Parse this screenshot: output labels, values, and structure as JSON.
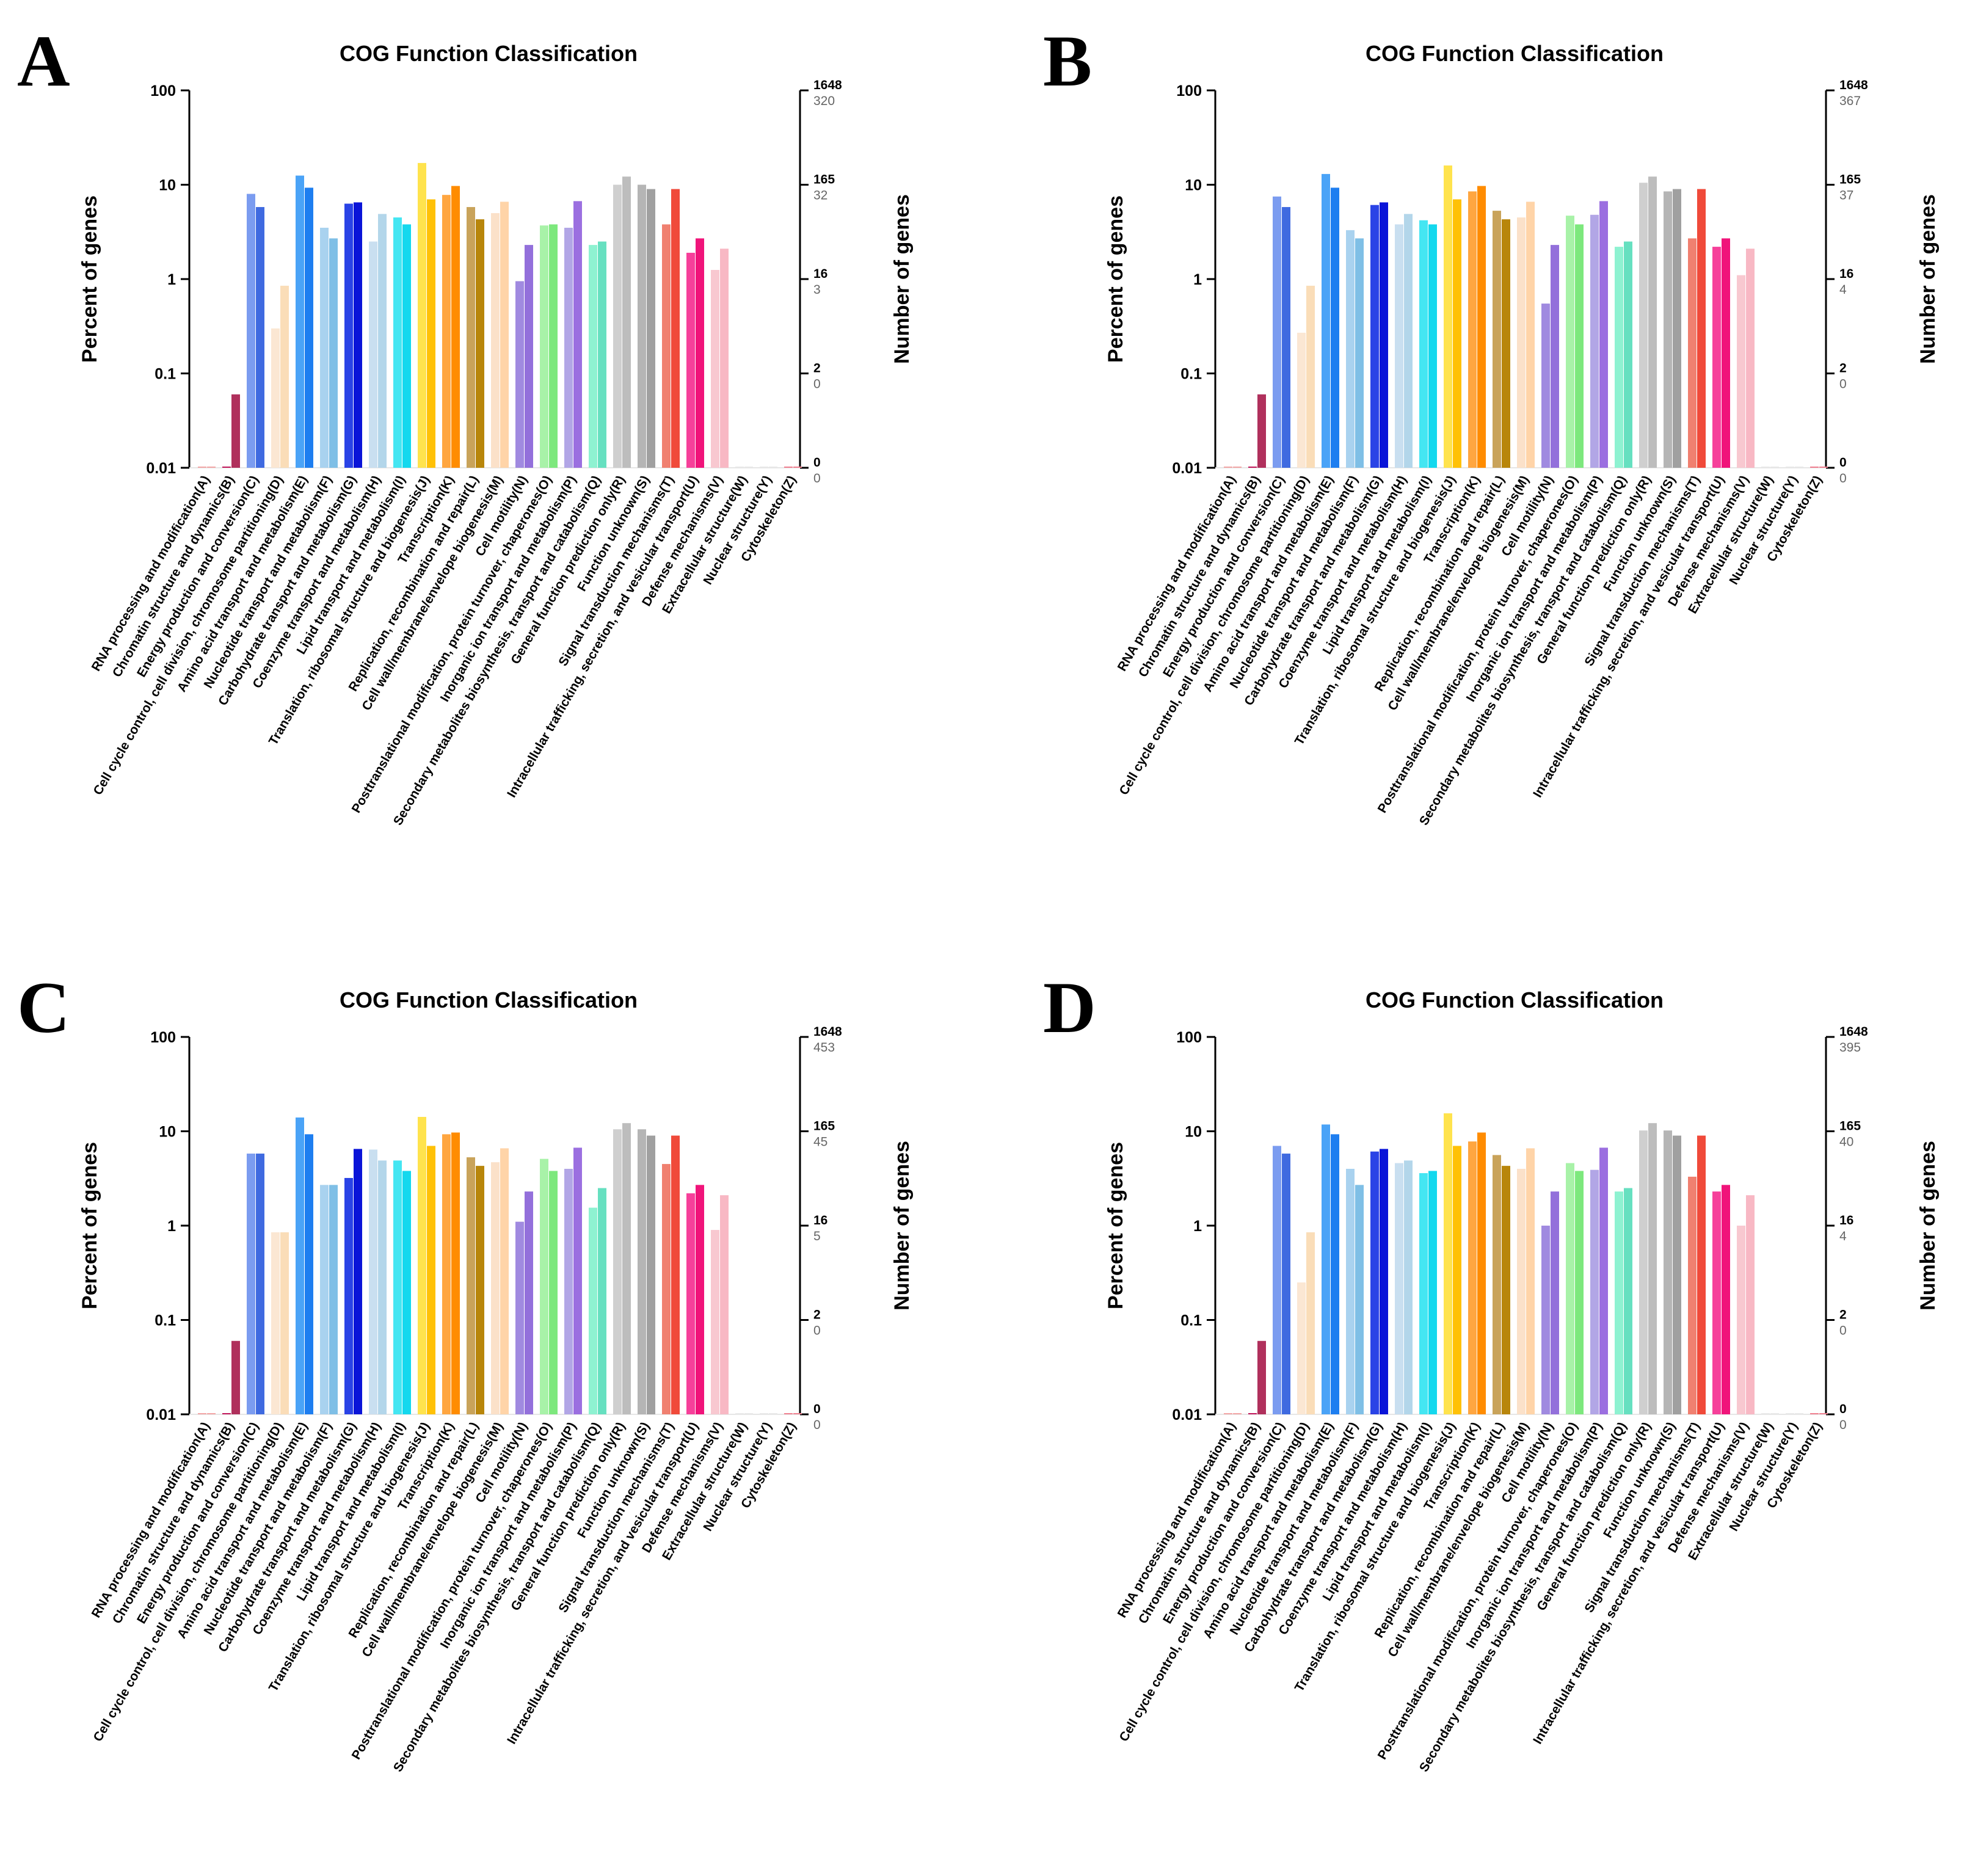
{
  "figure": {
    "title": "COG Function Classification",
    "y_left_label": "Percent of genes",
    "y_right_label": "Number of genes"
  },
  "categories": [
    "RNA processing and modification(A)",
    "Chromatin structure and dynamics(B)",
    "Energy production and conversion(C)",
    "Cell cycle control, cell division, chromosome partitioning(D)",
    "Amino acid transport and metabolism(E)",
    "Nucleotide transport and metabolism(F)",
    "Carbohydrate transport and metabolism(G)",
    "Coenzyme transport and metabolism(H)",
    "Lipid transport and metabolism(I)",
    "Translation, ribosomal structure and biogenesis(J)",
    "Transcription(K)",
    "Replication, recombination and repair(L)",
    "Cell wall/membrane/envelope biogenesis(M)",
    "Cell motility(N)",
    "Posttranslational modification, protein turnover, chaperones(O)",
    "Inorganic ion transport and metabolism(P)",
    "Secondary metabolites biosynthesis, transport and catabolism(Q)",
    "General function prediction only(R)",
    "Function unknown(S)",
    "Signal transduction mechanisms(T)",
    "Intracellular trafficking, secretion, and vesicular transport(U)",
    "Defense mechanisms(V)",
    "Extracellular structure(W)",
    "Nuclear structure(Y)",
    "Cytoskeleton(Z)"
  ],
  "category_colors": [
    [
      "#f3a6a6",
      "#f3a6a6"
    ],
    [
      "#c2185b",
      "#b0305c"
    ],
    [
      "#7b9cf0",
      "#3f6ae0"
    ],
    [
      "#fbe7d3",
      "#faddb8"
    ],
    [
      "#4aa3f7",
      "#1e7ef0"
    ],
    [
      "#a9d2ef",
      "#7fbfe6"
    ],
    [
      "#2a43e6",
      "#0a14d8"
    ],
    [
      "#c9dff0",
      "#b3d6ea"
    ],
    [
      "#44e6f2",
      "#14d8ee"
    ],
    [
      "#ffe34d",
      "#ffc107"
    ],
    [
      "#ffa640",
      "#ff8c00"
    ],
    [
      "#c9a35a",
      "#b8860b"
    ],
    [
      "#fbe1c9",
      "#ffd4a8"
    ],
    [
      "#a08ae0",
      "#9370db"
    ],
    [
      "#a8f2a8",
      "#7de87d"
    ],
    [
      "#b2a6e6",
      "#9b6fe0"
    ],
    [
      "#8ef2d1",
      "#66e0c0"
    ],
    [
      "#cfcfcf",
      "#bdbdbd"
    ],
    [
      "#b5b5b5",
      "#a0a0a0"
    ],
    [
      "#f08070",
      "#f04a3a"
    ],
    [
      "#f6409a",
      "#f0147a"
    ],
    [
      "#f8c8d0",
      "#f8b8c4"
    ],
    [
      "#e8e8e8",
      "#e8e8e8"
    ],
    [
      "#e8e8e8",
      "#e8e8e8"
    ],
    [
      "#f08090",
      "#f08090"
    ]
  ],
  "chart_data": [
    {
      "panel": "A",
      "type": "bar",
      "title": "COG Function Classification",
      "ylabel": "Percent of genes",
      "ylabel_right": "Number of genes",
      "yscale": "log",
      "ylim": [
        0.01,
        100
      ],
      "left_ticks": [
        "100",
        "10",
        "1",
        "0.1",
        "0.01"
      ],
      "right_ticks_total": [
        "1648",
        "165",
        "16",
        "2",
        "0"
      ],
      "right_ticks_sample": [
        "320",
        "32",
        "3",
        "0",
        "0"
      ],
      "series": [
        {
          "name": "sample",
          "values": [
            0,
            0,
            8.0,
            0.3,
            12.5,
            3.5,
            6.3,
            2.5,
            4.5,
            17.0,
            7.8,
            5.8,
            5.0,
            0.95,
            3.7,
            3.5,
            2.3,
            10.0,
            10.0,
            3.8,
            1.9,
            1.25,
            0,
            0,
            0
          ]
        },
        {
          "name": "all",
          "values": [
            0,
            0.06,
            5.8,
            0.85,
            9.3,
            2.7,
            6.5,
            4.9,
            3.8,
            7.0,
            9.7,
            4.3,
            6.6,
            2.3,
            3.8,
            6.7,
            2.5,
            12.2,
            9.0,
            9.0,
            2.7,
            2.1,
            0,
            0,
            0
          ]
        }
      ]
    },
    {
      "panel": "B",
      "type": "bar",
      "title": "COG Function Classification",
      "ylabel": "Percent of genes",
      "ylabel_right": "Number of genes",
      "yscale": "log",
      "ylim": [
        0.01,
        100
      ],
      "left_ticks": [
        "100",
        "10",
        "1",
        "0.1",
        "0.01"
      ],
      "right_ticks_total": [
        "1648",
        "165",
        "16",
        "2",
        "0"
      ],
      "right_ticks_sample": [
        "367",
        "37",
        "4",
        "0",
        "0"
      ],
      "series": [
        {
          "name": "sample",
          "values": [
            0,
            0,
            7.5,
            0.27,
            13.0,
            3.3,
            6.1,
            3.8,
            4.2,
            16.0,
            8.5,
            5.3,
            4.5,
            0.55,
            4.7,
            4.8,
            2.2,
            10.5,
            8.5,
            2.7,
            2.2,
            1.1,
            0,
            0,
            0
          ]
        },
        {
          "name": "all",
          "values": [
            0,
            0.06,
            5.8,
            0.85,
            9.3,
            2.7,
            6.5,
            4.9,
            3.8,
            7.0,
            9.7,
            4.3,
            6.6,
            2.3,
            3.8,
            6.7,
            2.5,
            12.2,
            9.0,
            9.0,
            2.7,
            2.1,
            0,
            0,
            0
          ]
        }
      ]
    },
    {
      "panel": "C",
      "type": "bar",
      "title": "COG Function Classification",
      "ylabel": "Percent of genes",
      "ylabel_right": "Number of genes",
      "yscale": "log",
      "ylim": [
        0.01,
        100
      ],
      "left_ticks": [
        "100",
        "10",
        "1",
        "0.1",
        "0.01"
      ],
      "right_ticks_total": [
        "1648",
        "165",
        "16",
        "2",
        "0"
      ],
      "right_ticks_sample": [
        "453",
        "45",
        "5",
        "0",
        "0"
      ],
      "series": [
        {
          "name": "sample",
          "values": [
            0,
            0,
            5.8,
            0.85,
            14.0,
            2.7,
            3.2,
            6.4,
            4.9,
            14.2,
            9.3,
            5.3,
            4.7,
            1.1,
            5.1,
            4.0,
            1.55,
            10.5,
            10.5,
            4.5,
            2.2,
            0.9,
            0,
            0,
            0
          ]
        },
        {
          "name": "all",
          "values": [
            0,
            0.06,
            5.8,
            0.85,
            9.3,
            2.7,
            6.5,
            4.9,
            3.8,
            7.0,
            9.7,
            4.3,
            6.6,
            2.3,
            3.8,
            6.7,
            2.5,
            12.2,
            9.0,
            9.0,
            2.7,
            2.1,
            0,
            0,
            0
          ]
        }
      ]
    },
    {
      "panel": "D",
      "type": "bar",
      "title": "COG Function Classification",
      "ylabel": "Percent of genes",
      "ylabel_right": "Number of genes",
      "yscale": "log",
      "ylim": [
        0.01,
        100
      ],
      "left_ticks": [
        "100",
        "10",
        "1",
        "0.1",
        "0.01"
      ],
      "right_ticks_total": [
        "1648",
        "165",
        "16",
        "2",
        "0"
      ],
      "right_ticks_sample": [
        "395",
        "40",
        "4",
        "0",
        "0"
      ],
      "series": [
        {
          "name": "sample",
          "values": [
            0,
            0,
            7.0,
            0.25,
            11.8,
            4.0,
            6.1,
            4.6,
            3.6,
            15.5,
            7.8,
            5.6,
            4.0,
            1.0,
            4.6,
            3.9,
            2.3,
            10.2,
            10.2,
            3.3,
            2.3,
            1.0,
            0,
            0,
            0
          ]
        },
        {
          "name": "all",
          "values": [
            0,
            0.06,
            5.8,
            0.85,
            9.3,
            2.7,
            6.5,
            4.9,
            3.8,
            7.0,
            9.7,
            4.3,
            6.6,
            2.3,
            3.8,
            6.7,
            2.5,
            12.2,
            9.0,
            9.0,
            2.7,
            2.1,
            0,
            0,
            0
          ]
        }
      ]
    }
  ]
}
